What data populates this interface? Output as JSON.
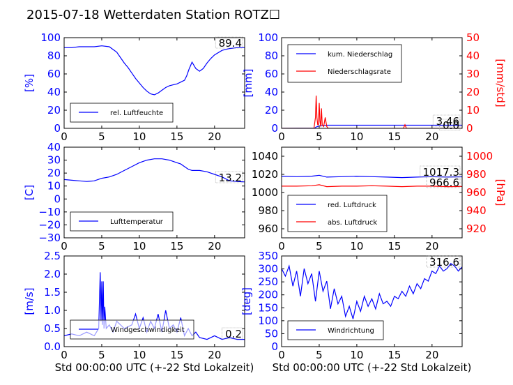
{
  "title": "2015-07-18 Wetterdaten Station ROTZ☐",
  "chart_data": [
    {
      "id": "humidity",
      "type": "line",
      "ylabel": "[%]",
      "xlim": [
        0,
        24
      ],
      "ylim": [
        0,
        100
      ],
      "xticks": [
        "0",
        "5",
        "10",
        "15",
        "20"
      ],
      "yticks": [
        "0",
        "20",
        "40",
        "60",
        "80",
        "100"
      ],
      "legend": "bottom-left",
      "series": [
        {
          "name": "rel. Luftfeuchte",
          "color": "#0000ff",
          "x": [
            0,
            1,
            2,
            3,
            4,
            5,
            6,
            6.5,
            7,
            7.5,
            8,
            8.5,
            9,
            9.5,
            10,
            10.5,
            11,
            11.5,
            12,
            12.5,
            13,
            13.5,
            14,
            14.5,
            15,
            15.5,
            16,
            16.3,
            16.6,
            17,
            17.5,
            18,
            18.5,
            19,
            19.5,
            20,
            21,
            22,
            23,
            24
          ],
          "y": [
            89,
            89,
            90,
            90,
            90,
            91,
            90,
            87,
            84,
            78,
            72,
            67,
            61,
            55,
            50,
            45,
            41,
            38,
            37,
            39,
            42,
            45,
            47,
            48,
            49,
            51,
            53,
            58,
            65,
            73,
            66,
            63,
            66,
            72,
            77,
            81,
            86,
            88,
            89,
            89
          ]
        }
      ],
      "annotations": [
        "89.4"
      ]
    },
    {
      "id": "precip",
      "type": "line",
      "ylabel": "[mm]",
      "ylabel2": "[mm/std]",
      "xlim": [
        0,
        24
      ],
      "ylim": [
        0,
        100
      ],
      "ylim2": [
        0,
        50
      ],
      "xticks": [
        "0",
        "5",
        "10",
        "15",
        "20"
      ],
      "yticks": [
        "0",
        "20",
        "40",
        "60",
        "80",
        "100"
      ],
      "yticks2": [
        "0",
        "10",
        "20",
        "30",
        "40",
        "50"
      ],
      "legend": "top-left",
      "series": [
        {
          "name": "kum. Niederschlag",
          "color": "#0000ff",
          "axis": "left",
          "x": [
            0,
            4.4,
            4.6,
            4.9,
            5.2,
            5.6,
            6,
            24
          ],
          "y": [
            0,
            0.2,
            1.5,
            2.4,
            2.9,
            3.2,
            3.46,
            3.46
          ]
        },
        {
          "name": "Niederschlagsrate",
          "color": "#ff0000",
          "axis": "right",
          "x": [
            0,
            4.3,
            4.5,
            4.6,
            4.7,
            4.8,
            4.9,
            5.0,
            5.1,
            5.2,
            5.3,
            5.4,
            5.6,
            5.8,
            6.0,
            6.2,
            16.2,
            16.4,
            16.6,
            16.8,
            24
          ],
          "y": [
            0,
            0,
            6,
            18,
            6,
            2,
            2,
            14,
            4,
            1,
            11,
            2,
            1,
            6,
            1,
            0,
            0,
            2,
            0,
            0,
            0
          ]
        }
      ],
      "annotations": [
        "3.46",
        "0.0"
      ]
    },
    {
      "id": "temperature",
      "type": "line",
      "ylabel": "[C]",
      "xlim": [
        0,
        24
      ],
      "ylim": [
        -30,
        40
      ],
      "xticks": [
        "0",
        "5",
        "10",
        "15",
        "20"
      ],
      "yticks": [
        "−30",
        "−20",
        "−10",
        "0",
        "10",
        "20",
        "30",
        "40"
      ],
      "legend": "bottom-left",
      "series": [
        {
          "name": "Lufttemperatur",
          "color": "#0000ff",
          "x": [
            0,
            1,
            2,
            3,
            4,
            5,
            6,
            7,
            8,
            9,
            10,
            11,
            12,
            13,
            14,
            15,
            15.5,
            16,
            16.5,
            17,
            18,
            19,
            20,
            21,
            22,
            23,
            24
          ],
          "y": [
            15,
            14.5,
            14,
            13.5,
            14,
            16,
            17,
            19,
            22,
            25,
            28,
            30,
            31,
            31,
            30,
            28,
            27,
            25,
            23,
            22,
            22,
            21,
            19,
            17,
            14,
            13.5,
            13.2
          ]
        }
      ],
      "annotations": [
        "13.2"
      ]
    },
    {
      "id": "pressure",
      "type": "line",
      "ylabel2": "[hPa]",
      "xlim": [
        0,
        24
      ],
      "ylim": [
        950,
        1050
      ],
      "ylim2": [
        910,
        1010
      ],
      "xticks": [
        "0",
        "5",
        "10",
        "15",
        "20"
      ],
      "yticks": [
        "960",
        "980",
        "1000",
        "1020",
        "1040"
      ],
      "yticks2": [
        "920",
        "940",
        "960",
        "980",
        "1000"
      ],
      "legend": "bottom-left",
      "series": [
        {
          "name": "red. Luftdruck",
          "color": "#0000ff",
          "axis": "left",
          "x": [
            0,
            2,
            4,
            5,
            6,
            8,
            10,
            12,
            14,
            16,
            18,
            20,
            22,
            24
          ],
          "y": [
            1018,
            1017.5,
            1018,
            1019,
            1017,
            1017.5,
            1018,
            1017.5,
            1017,
            1016.5,
            1017,
            1017.5,
            1017,
            1017.3
          ]
        },
        {
          "name": "abs. Luftdruck",
          "color": "#ff0000",
          "axis": "right",
          "x": [
            0,
            2,
            4,
            5,
            6,
            8,
            10,
            12,
            14,
            16,
            18,
            20,
            22,
            24
          ],
          "y": [
            967,
            967,
            967.5,
            968.5,
            966.5,
            967,
            967,
            967.5,
            967,
            966.5,
            967,
            967,
            966.5,
            966.6
          ]
        }
      ],
      "annotations": [
        "1017.3",
        "966.6"
      ]
    },
    {
      "id": "windspeed",
      "type": "line",
      "ylabel": "[m/s]",
      "xlabel": "Std 00:00:00 UTC (+-22 Std Lokalzeit)",
      "xlim": [
        0,
        24
      ],
      "ylim": [
        0,
        2.5
      ],
      "xticks": [
        "0",
        "5",
        "10",
        "15",
        "20"
      ],
      "yticks": [
        "0.0",
        "0.5",
        "1.0",
        "1.5",
        "2.0",
        "2.5"
      ],
      "legend": "bottom-left",
      "series": [
        {
          "name": "Windgeschwindigkeit",
          "color": "#0000ff",
          "x": [
            0,
            1,
            2,
            3,
            4,
            4.6,
            4.8,
            4.9,
            5.0,
            5.1,
            5.2,
            5.3,
            5.4,
            5.6,
            6,
            6.5,
            7,
            8,
            9,
            9.5,
            10,
            10.5,
            11,
            11.5,
            12,
            12.5,
            13,
            13.5,
            14,
            14.5,
            15,
            15.5,
            16,
            16.5,
            17,
            17.5,
            18,
            19,
            20,
            21,
            22,
            23,
            24
          ],
          "y": [
            0.3,
            0.35,
            0.3,
            0.4,
            0.3,
            0.5,
            2.05,
            0.7,
            1.8,
            0.6,
            1.8,
            0.5,
            1.1,
            0.5,
            0.6,
            0.4,
            0.7,
            0.5,
            0.6,
            0.9,
            0.5,
            0.8,
            0.4,
            0.7,
            0.5,
            0.9,
            0.4,
            1.0,
            0.5,
            0.6,
            0.4,
            0.8,
            0.3,
            0.5,
            0.3,
            0.4,
            0.25,
            0.2,
            0.3,
            0.2,
            0.25,
            0.2,
            0.2
          ]
        }
      ],
      "annotations": [
        "0.2"
      ]
    },
    {
      "id": "winddir",
      "type": "line",
      "ylabel": "[deg]",
      "xlabel": "Std 00:00:00 UTC (+-22 Std Lokalzeit)",
      "xlim": [
        0,
        24
      ],
      "ylim": [
        0,
        360
      ],
      "xticks": [
        "0",
        "5",
        "10",
        "15",
        "20"
      ],
      "yticks": [
        "0",
        "50",
        "100",
        "150",
        "200",
        "250",
        "300",
        "350"
      ],
      "legend": "bottom-left",
      "series": [
        {
          "name": "Windrichtung",
          "color": "#0000ff",
          "x": [
            0,
            0.5,
            1,
            1.5,
            2,
            2.5,
            3,
            3.5,
            4,
            4.5,
            5,
            5.5,
            6,
            6.5,
            7,
            7.5,
            8,
            8.5,
            9,
            9.5,
            10,
            10.5,
            11,
            11.5,
            12,
            12.5,
            13,
            13.5,
            14,
            14.5,
            15,
            15.5,
            16,
            16.5,
            17,
            17.5,
            18,
            18.5,
            19,
            19.5,
            20,
            20.5,
            21,
            21.5,
            22,
            22.5,
            23,
            23.5,
            24
          ],
          "y": [
            310,
            280,
            320,
            240,
            300,
            200,
            310,
            250,
            290,
            180,
            300,
            220,
            260,
            150,
            230,
            170,
            200,
            120,
            160,
            110,
            180,
            140,
            200,
            160,
            190,
            150,
            210,
            170,
            180,
            160,
            200,
            190,
            220,
            200,
            240,
            210,
            250,
            230,
            270,
            260,
            300,
            290,
            320,
            300,
            310,
            330,
            320,
            300,
            316.6
          ]
        }
      ],
      "annotations": [
        "316.6"
      ]
    }
  ]
}
